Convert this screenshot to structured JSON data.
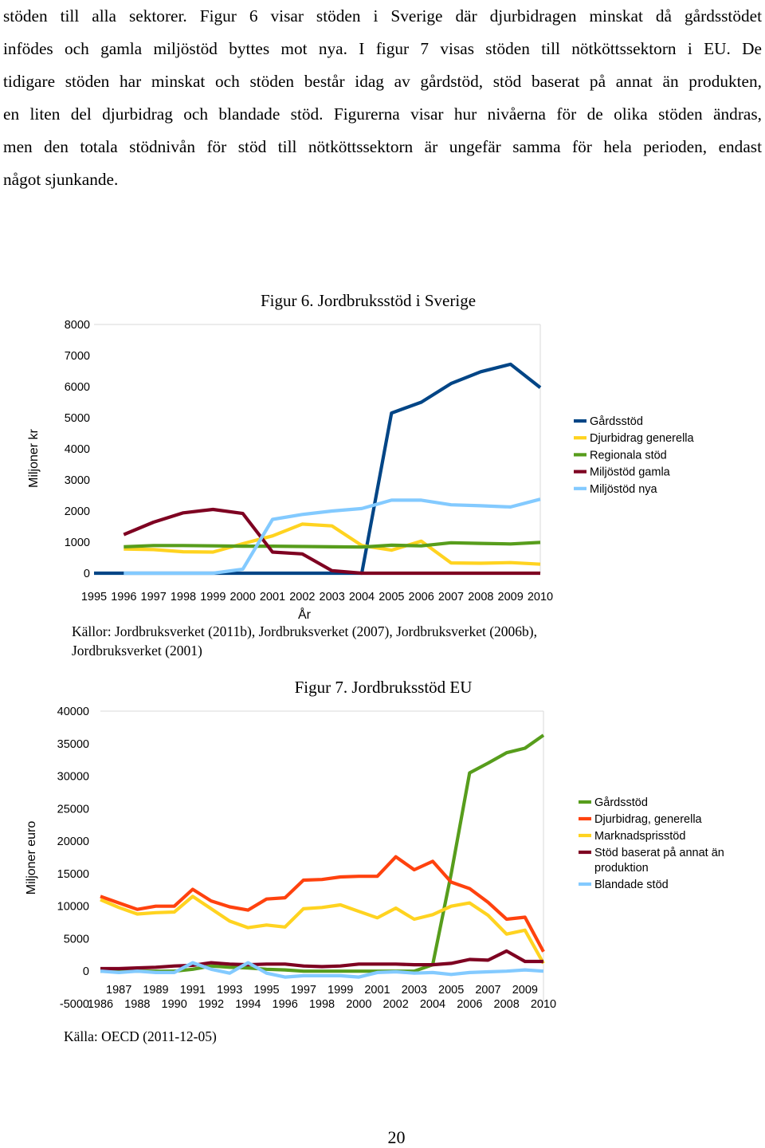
{
  "paragraph_lines": [
    "stöden till alla sektorer. Figur 6 visar stöden i Sverige där djurbidragen minskat då gårdsstödet",
    "infödes och gamla miljöstöd byttes mot nya. I figur 7 visas stöden till nötköttssektorn i EU. De",
    "tidigare stöden har minskat och stöden består idag av gårdstöd, stöd baserat på annat än produkten,",
    "en liten del djurbidrag och blandade stöd. Figurerna visar hur nivåerna för de olika stöden ändras,",
    "men den totala stödnivån för stöd till nötköttssektorn är ungefär samma för hela perioden, endast",
    "något sjunkande."
  ],
  "figure6_source": "Källor: Jordbruksverket (2011b), Jordbruksverket (2007), Jordbruksverket (2006b), Jordbruksverket (2001)",
  "figure7_source": "Källa: OECD (2011-12-05)",
  "page_number": "20",
  "chart_data": [
    {
      "type": "line",
      "title": "Figur 6. Jordbruksstöd i Sverige",
      "xlabel": "År",
      "ylabel": "Miljoner kr",
      "ylim": [
        0,
        8000
      ],
      "yticks": [
        0,
        1000,
        2000,
        3000,
        4000,
        5000,
        6000,
        7000,
        8000
      ],
      "grid": false,
      "legend_position": "right",
      "categories": [
        "1995",
        "1996",
        "1997",
        "1998",
        "1999",
        "2000",
        "2001",
        "2002",
        "2003",
        "2004",
        "2005",
        "2006",
        "2007",
        "2008",
        "2009",
        "2010"
      ],
      "series": [
        {
          "name": "Gårdsstöd",
          "color": "#004586",
          "values": [
            0,
            0,
            0,
            0,
            0,
            0,
            0,
            0,
            0,
            0,
            5150,
            5500,
            6100,
            6480,
            6720,
            5970
          ]
        },
        {
          "name": "Djurbidrag generella",
          "color": "#ffd320",
          "values": [
            null,
            780,
            760,
            690,
            680,
            950,
            1200,
            1580,
            1520,
            890,
            740,
            1030,
            330,
            320,
            340,
            290
          ]
        },
        {
          "name": "Regionala stöd",
          "color": "#579d1c",
          "values": [
            null,
            850,
            890,
            890,
            880,
            870,
            870,
            860,
            850,
            840,
            900,
            880,
            980,
            960,
            940,
            990
          ]
        },
        {
          "name": "Miljöstöd gamla",
          "color": "#7e0021",
          "values": [
            null,
            1240,
            1640,
            1940,
            2050,
            1920,
            680,
            620,
            80,
            0,
            0,
            0,
            0,
            0,
            0,
            0
          ]
        },
        {
          "name": "Miljöstöd nya",
          "color": "#83caff",
          "values": [
            null,
            0,
            0,
            0,
            0,
            130,
            1730,
            1890,
            2000,
            2080,
            2350,
            2350,
            2200,
            2170,
            2130,
            2380
          ]
        }
      ]
    },
    {
      "type": "line",
      "title": "Figur 7. Jordbruksstöd EU",
      "xlabel": "",
      "ylabel": "Miljoner euro",
      "ylim": [
        -5000,
        40000
      ],
      "yticks": [
        -5000,
        0,
        5000,
        10000,
        15000,
        20000,
        25000,
        30000,
        35000,
        40000
      ],
      "grid": false,
      "legend_position": "right",
      "categories": [
        "1986",
        "1987",
        "1988",
        "1989",
        "1990",
        "1991",
        "1992",
        "1993",
        "1994",
        "1995",
        "1996",
        "1997",
        "1998",
        "1999",
        "2000",
        "2001",
        "2002",
        "2003",
        "2004",
        "2005",
        "2006",
        "2007",
        "2008",
        "2009",
        "2010"
      ],
      "series": [
        {
          "name": "Gårdsstöd",
          "color": "#579d1c",
          "values": [
            0,
            0,
            0,
            0,
            0,
            300,
            800,
            600,
            500,
            300,
            200,
            0,
            0,
            0,
            0,
            0,
            0,
            0,
            1000,
            15000,
            30500,
            32000,
            33600,
            34300,
            36300
          ]
        },
        {
          "name": "Djurbidrag, generella",
          "color": "#ff420e",
          "values": [
            11500,
            10500,
            9500,
            10000,
            10000,
            12600,
            10800,
            9900,
            9400,
            11100,
            11300,
            14000,
            14100,
            14500,
            14600,
            14600,
            17600,
            15600,
            16900,
            13700,
            12700,
            10600,
            8000,
            8300,
            3000
          ]
        },
        {
          "name": "Marknadsprisstöd",
          "color": "#ffd320",
          "values": [
            11000,
            9800,
            8800,
            9000,
            9100,
            11500,
            9600,
            7700,
            6700,
            7100,
            6800,
            9600,
            9800,
            10200,
            9200,
            8200,
            9700,
            8000,
            8700,
            10000,
            10500,
            8600,
            5700,
            6300,
            1200
          ]
        },
        {
          "name": "Stöd baserat på annat än produktion",
          "color": "#7e0021",
          "values": [
            400,
            400,
            500,
            600,
            800,
            900,
            1300,
            1100,
            1000,
            1100,
            1100,
            800,
            700,
            800,
            1100,
            1100,
            1100,
            1000,
            1000,
            1200,
            1800,
            1700,
            3100,
            1500,
            1500
          ]
        },
        {
          "name": "Blandade stöd",
          "color": "#83caff",
          "values": [
            0,
            -200,
            0,
            -200,
            -200,
            1300,
            300,
            -300,
            1300,
            -300,
            -900,
            -700,
            -700,
            -700,
            -900,
            -200,
            -100,
            -300,
            -200,
            -500,
            -200,
            -100,
            0,
            200,
            0
          ]
        }
      ]
    }
  ]
}
